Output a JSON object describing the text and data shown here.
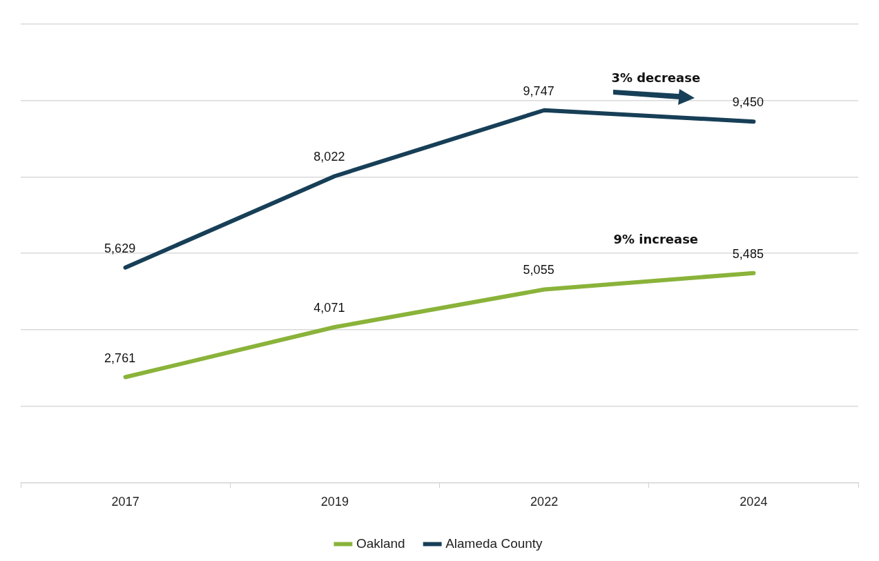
{
  "chart_data": {
    "type": "line",
    "categories": [
      "2017",
      "2019",
      "2022",
      "2024"
    ],
    "series": [
      {
        "name": "Oakland",
        "color": "#8ab33a",
        "values": [
          2761,
          4071,
          5055,
          5485
        ],
        "value_labels": [
          "2,761",
          "4,071",
          "5,055",
          "5,485"
        ]
      },
      {
        "name": "Alameda County",
        "color": "#173f57",
        "values": [
          5629,
          8022,
          9747,
          9450
        ],
        "value_labels": [
          "5,629",
          "8,022",
          "9,747",
          "9,450"
        ]
      }
    ],
    "tick_labels": "x",
    "grid": "y",
    "legend": "bottom",
    "marker": "none",
    "line_style": "solid",
    "annotations": [
      "3% decrease",
      "9% increase"
    ]
  }
}
